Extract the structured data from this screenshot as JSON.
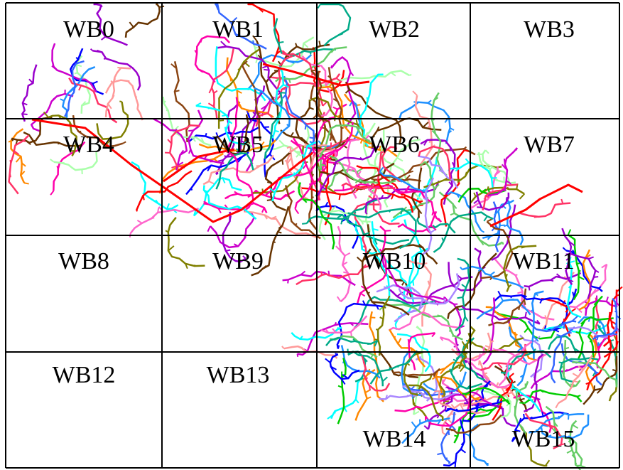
{
  "cells": [
    "WB0",
    "WB1",
    "WB2",
    "WB3",
    "WB4",
    "WB5",
    "WB6",
    "WB7",
    "WB8",
    "WB9",
    "WB10",
    "WB11",
    "WB12",
    "WB13",
    "WB14",
    "WB15"
  ]
}
